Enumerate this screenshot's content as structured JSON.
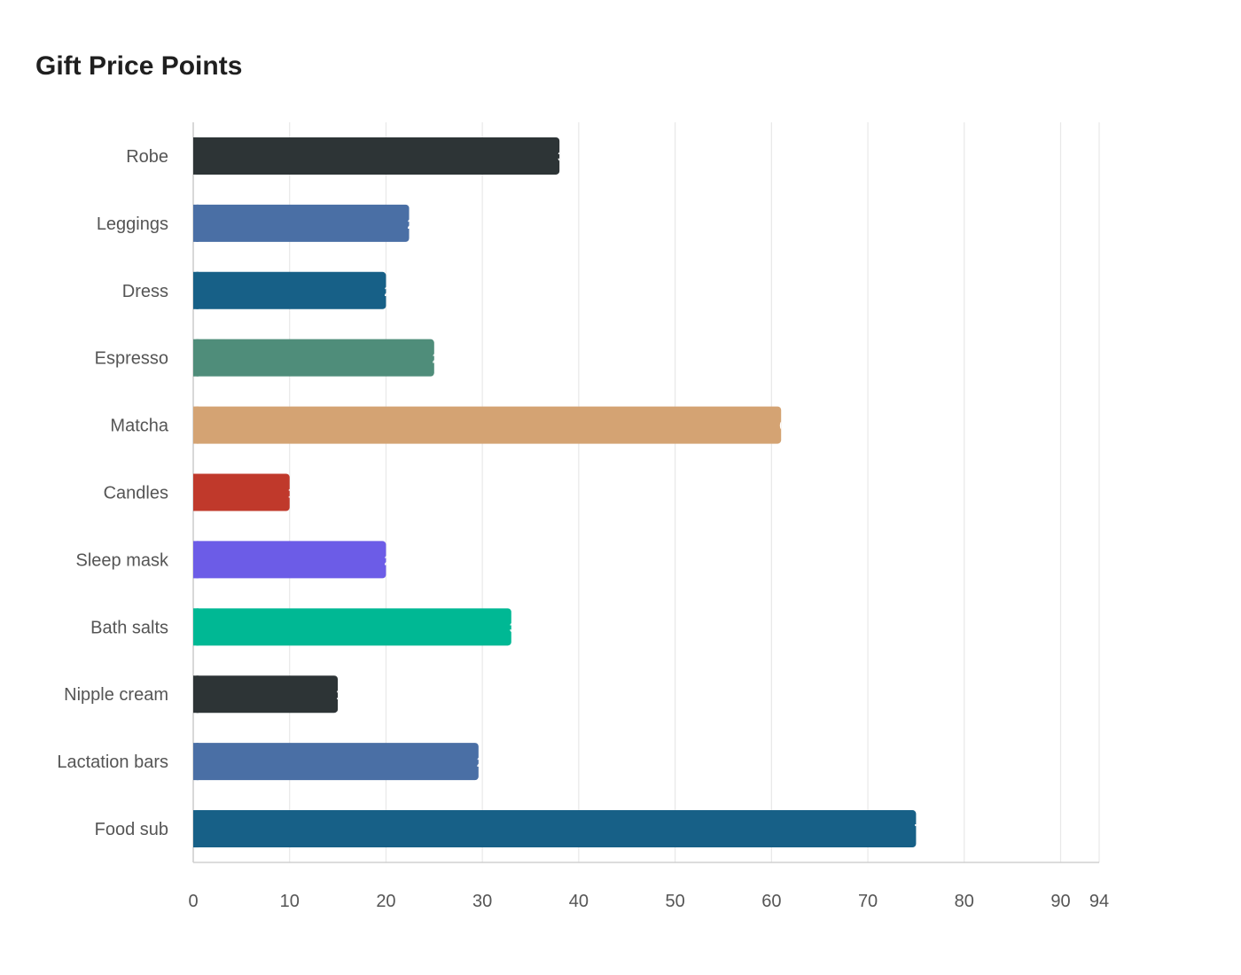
{
  "title": "Gift Price Points",
  "chart_data": {
    "type": "bar",
    "orientation": "horizontal",
    "title": "Gift Price Points",
    "xlabel": "",
    "ylabel": "",
    "xlim": [
      0,
      94
    ],
    "x_ticks": [
      0,
      10,
      20,
      30,
      40,
      50,
      60,
      70,
      80,
      90,
      94
    ],
    "grid": true,
    "categories": [
      "Robe",
      "Leggings",
      "Dress",
      "Espresso",
      "Matcha",
      "Candles",
      "Sleep mask",
      "Bath salts",
      "Nipple cream",
      "Lactation bars",
      "Food sub"
    ],
    "values": [
      38,
      22.4,
      20,
      25,
      61,
      10,
      20,
      33,
      15,
      29.6,
      75
    ],
    "colors": [
      "#2d3436",
      "#4a6fa5",
      "#176087",
      "#4f8d7a",
      "#d4a373",
      "#c0392b",
      "#6c5ce7",
      "#00b894",
      "#2d3436",
      "#4a6fa5",
      "#176087"
    ]
  }
}
